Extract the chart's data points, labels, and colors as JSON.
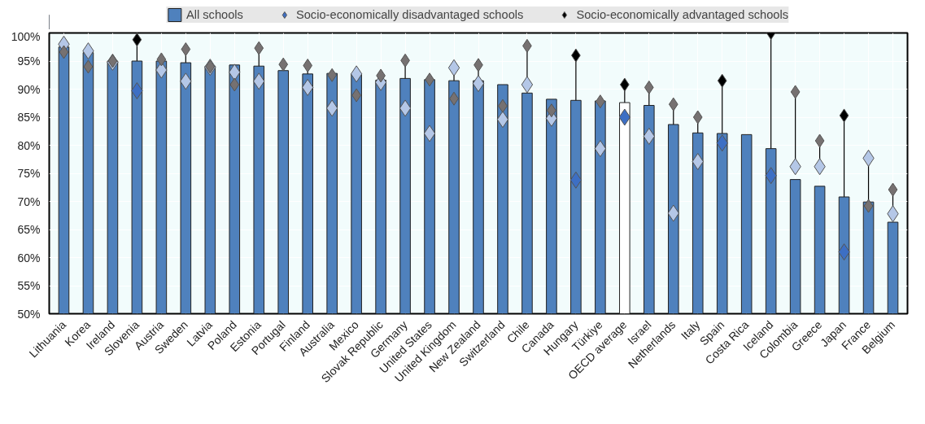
{
  "chart_data": {
    "type": "bar",
    "categories": [
      "Lithuania",
      "Korea",
      "Ireland",
      "Slovenia",
      "Austria",
      "Sweden",
      "Latvia",
      "Poland",
      "Estonia",
      "Portugal",
      "Finland",
      "Australia",
      "Mexico",
      "Slovak Republic",
      "Germany",
      "United States",
      "United Kingdom",
      "New Zealand",
      "Switzerland",
      "Chile",
      "Canada",
      "Hungary",
      "Türkiye",
      "OECD average",
      "Israel",
      "Netherlands",
      "Italy",
      "Spain",
      "Costa Rica",
      "Iceland",
      "Colombia",
      "Greece",
      "Japan",
      "France",
      "Belgium"
    ],
    "series": [
      {
        "name": "All schools",
        "color": "#4f81bd",
        "colors": [
          "#4f81bd",
          "#4f81bd",
          "#4f81bd",
          "#4f81bd",
          "#4f81bd",
          "#4f81bd",
          "#4f81bd",
          "#4f81bd",
          "#4f81bd",
          "#4f81bd",
          "#4f81bd",
          "#4f81bd",
          "#4f81bd",
          "#4f81bd",
          "#4f81bd",
          "#4f81bd",
          "#4f81bd",
          "#4f81bd",
          "#4f81bd",
          "#4f81bd",
          "#4f81bd",
          "#4f81bd",
          "#4f81bd",
          "#ffffff",
          "#4f81bd",
          "#4f81bd",
          "#4f81bd",
          "#4f81bd",
          "#4f81bd",
          "#4f81bd",
          "#4f81bd",
          "#4f81bd",
          "#4f81bd",
          "#4f81bd",
          "#4f81bd"
        ],
        "values": [
          97.5,
          96.5,
          95,
          95,
          95,
          94.7,
          94.1,
          94.3,
          94.1,
          93.3,
          92.7,
          92.8,
          92.7,
          91.6,
          91.9,
          91.7,
          91.5,
          91.5,
          90.8,
          89.3,
          88.2,
          88,
          87.9,
          87.6,
          87.1,
          83.7,
          82.2,
          82.1,
          81.9,
          79.4,
          73.9,
          72.7,
          70.8,
          69.9,
          66.3
        ]
      },
      {
        "name": "Socio-economically disadvantaged schools",
        "type": "scatter",
        "color": "#3d6fc4",
        "colors": [
          "#b4c7e7",
          "#b4c7e7",
          "#b4c7e7",
          "#3d6fc4",
          "#b4c7e7",
          "#b4c7e7",
          "#b4c7e7",
          "#b4c7e7",
          "#b4c7e7",
          "#b4c7e7",
          "#b4c7e7",
          "#b4c7e7",
          "#b4c7e7",
          "#b4c7e7",
          "#b4c7e7",
          "#b4c7e7",
          "#b4c7e7",
          "#b4c7e7",
          "#b4c7e7",
          "#b4c7e7",
          "#b4c7e7",
          "#3d6fc4",
          "#b4c7e7",
          "#3d6fc4",
          "#b4c7e7",
          "#b4c7e7",
          "#b4c7e7",
          "#3d6fc4",
          "#b4c7e7",
          "#3d6fc4",
          "#b4c7e7",
          "#b4c7e7",
          "#3d6fc4",
          "#b4c7e7",
          "#b4c7e7"
        ],
        "values": [
          98,
          96.8,
          94.8,
          89.7,
          93.4,
          91.4,
          93.9,
          93,
          91.4,
          null,
          90.3,
          86.6,
          92.7,
          91.2,
          86.6,
          82.1,
          93.8,
          91,
          84.6,
          90.8,
          84.8,
          73.8,
          79.4,
          85,
          81.6,
          67.9,
          77.1,
          80.4,
          null,
          74.6,
          76.2,
          76.2,
          61,
          77.7,
          67.8
        ]
      },
      {
        "name": "Socio-economically advantaged schools",
        "type": "scatter",
        "color": "#000000",
        "colors": [
          "#767171",
          "#767171",
          "#767171",
          "#000000",
          "#767171",
          "#767171",
          "#767171",
          "#767171",
          "#767171",
          "#767171",
          "#767171",
          "#767171",
          "#767171",
          "#767171",
          "#767171",
          "#767171",
          "#767171",
          "#767171",
          "#767171",
          "#767171",
          "#767171",
          "#000000",
          "#767171",
          "#000000",
          "#767171",
          "#767171",
          "#767171",
          "#000000",
          "#767171",
          "#000000",
          "#767171",
          "#767171",
          "#000000",
          "#767171",
          "#767171"
        ],
        "values": [
          96.6,
          94,
          95,
          98.8,
          95.3,
          97.1,
          94,
          90.8,
          97.3,
          94.4,
          94.2,
          92.5,
          88.9,
          92.4,
          95.1,
          91.7,
          88.3,
          94.3,
          87,
          97.7,
          86.2,
          96,
          87.8,
          90.8,
          90.3,
          87.3,
          85,
          91.5,
          null,
          100,
          89.5,
          80.8,
          85.3,
          69.2,
          72.1
        ]
      }
    ],
    "ylim": [
      50,
      100
    ],
    "yticks": [
      {
        "value": 50,
        "label": "50%"
      },
      {
        "value": 55,
        "label": "55%"
      },
      {
        "value": 60,
        "label": "60%"
      },
      {
        "value": 65,
        "label": "65%"
      },
      {
        "value": 70,
        "label": "70%"
      },
      {
        "value": 75,
        "label": "75%"
      },
      {
        "value": 80,
        "label": "80%"
      },
      {
        "value": 85,
        "label": "85%"
      },
      {
        "value": 90,
        "label": "90%"
      },
      {
        "value": 95,
        "label": "95%"
      },
      {
        "value": 100,
        "label": "100%"
      }
    ],
    "grid": true,
    "legend": "top",
    "marker": "diamond"
  }
}
